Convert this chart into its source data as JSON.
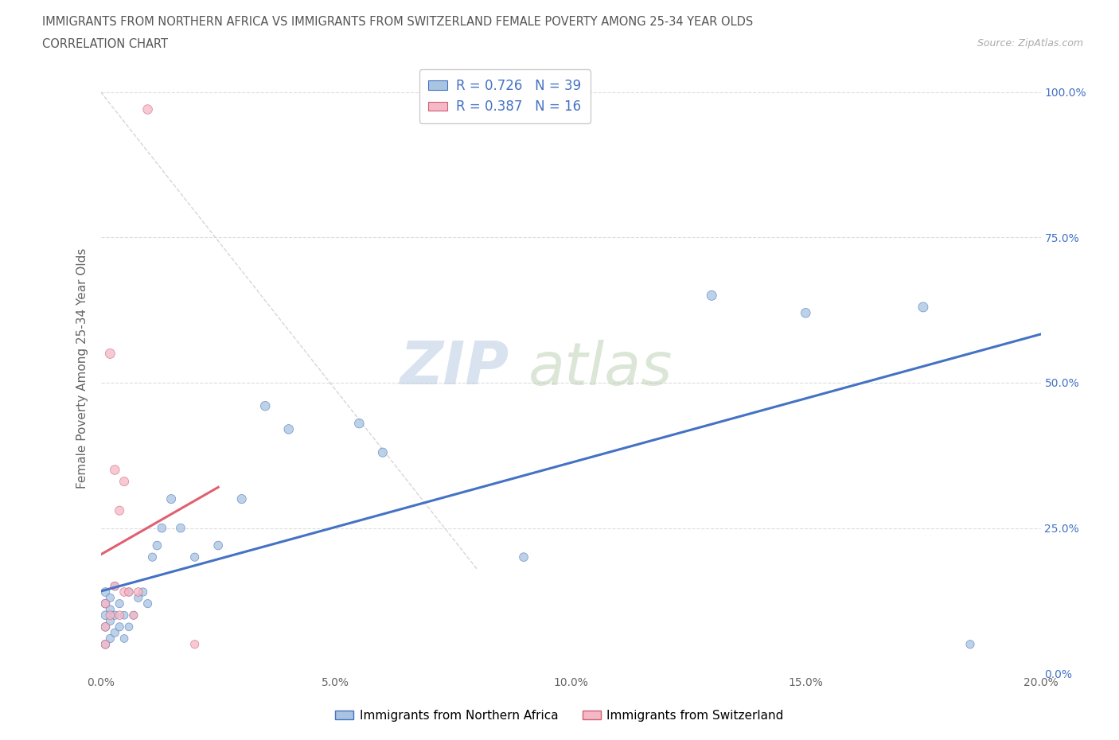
{
  "title_line1": "IMMIGRANTS FROM NORTHERN AFRICA VS IMMIGRANTS FROM SWITZERLAND FEMALE POVERTY AMONG 25-34 YEAR OLDS",
  "title_line2": "CORRELATION CHART",
  "source_text": "Source: ZipAtlas.com",
  "ylabel": "Female Poverty Among 25-34 Year Olds",
  "xlim": [
    0.0,
    0.2
  ],
  "ylim": [
    0.0,
    1.05
  ],
  "ytick_vals": [
    0.0,
    0.25,
    0.5,
    0.75,
    1.0
  ],
  "ytick_labels_right": [
    "0.0%",
    "25.0%",
    "50.0%",
    "75.0%",
    "100.0%"
  ],
  "xtick_vals": [
    0.0,
    0.05,
    0.1,
    0.15,
    0.2
  ],
  "xtick_labels": [
    "0.0%",
    "5.0%",
    "10.0%",
    "15.0%",
    "20.0%"
  ],
  "blue_face": "#a8c4e0",
  "blue_edge": "#4472c4",
  "pink_face": "#f4b8c8",
  "pink_edge": "#d06070",
  "blue_line": "#4472c4",
  "pink_line": "#e06070",
  "legend_label_blue": "Immigrants from Northern Africa",
  "legend_label_pink": "Immigrants from Switzerland",
  "R_blue": 0.726,
  "N_blue": 39,
  "R_pink": 0.387,
  "N_pink": 16,
  "blue_x": [
    0.001,
    0.001,
    0.001,
    0.001,
    0.001,
    0.002,
    0.002,
    0.002,
    0.002,
    0.003,
    0.003,
    0.003,
    0.004,
    0.004,
    0.005,
    0.005,
    0.006,
    0.006,
    0.007,
    0.008,
    0.009,
    0.01,
    0.011,
    0.012,
    0.013,
    0.015,
    0.017,
    0.02,
    0.025,
    0.03,
    0.035,
    0.04,
    0.055,
    0.06,
    0.09,
    0.13,
    0.15,
    0.175,
    0.185
  ],
  "blue_y": [
    0.05,
    0.08,
    0.1,
    0.12,
    0.14,
    0.06,
    0.09,
    0.11,
    0.13,
    0.07,
    0.1,
    0.15,
    0.08,
    0.12,
    0.06,
    0.1,
    0.08,
    0.14,
    0.1,
    0.13,
    0.14,
    0.12,
    0.2,
    0.22,
    0.25,
    0.3,
    0.25,
    0.2,
    0.22,
    0.3,
    0.46,
    0.42,
    0.43,
    0.38,
    0.2,
    0.65,
    0.62,
    0.63,
    0.05
  ],
  "pink_x": [
    0.001,
    0.001,
    0.001,
    0.002,
    0.002,
    0.003,
    0.003,
    0.004,
    0.004,
    0.005,
    0.005,
    0.006,
    0.007,
    0.008,
    0.01,
    0.02
  ],
  "pink_y": [
    0.05,
    0.08,
    0.12,
    0.55,
    0.1,
    0.35,
    0.15,
    0.28,
    0.1,
    0.33,
    0.14,
    0.14,
    0.1,
    0.14,
    0.97,
    0.05
  ],
  "blue_sizes": [
    60,
    60,
    60,
    60,
    60,
    55,
    55,
    55,
    55,
    55,
    55,
    55,
    55,
    55,
    50,
    50,
    50,
    50,
    50,
    55,
    55,
    55,
    55,
    60,
    60,
    65,
    60,
    55,
    60,
    65,
    70,
    70,
    70,
    65,
    60,
    75,
    70,
    75,
    55
  ],
  "pink_sizes": [
    60,
    60,
    60,
    75,
    60,
    70,
    60,
    65,
    60,
    65,
    60,
    60,
    55,
    60,
    70,
    55
  ]
}
